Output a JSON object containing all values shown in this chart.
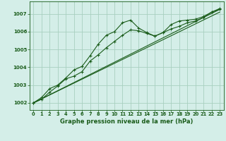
{
  "title": "Graphe pression niveau de la mer (hPa)",
  "background_color": "#d4eee8",
  "grid_color": "#a8cfc0",
  "line_color": "#1a5c1a",
  "text_color": "#1a5c1a",
  "xlim": [
    -0.5,
    23.5
  ],
  "ylim": [
    1001.6,
    1007.7
  ],
  "xticks": [
    0,
    1,
    2,
    3,
    4,
    5,
    6,
    7,
    8,
    9,
    10,
    11,
    12,
    13,
    14,
    15,
    16,
    17,
    18,
    19,
    20,
    21,
    22,
    23
  ],
  "yticks": [
    1002,
    1003,
    1004,
    1005,
    1006,
    1007
  ],
  "series1_x": [
    0,
    1,
    2,
    3,
    4,
    5,
    6,
    7,
    8,
    9,
    10,
    11,
    12,
    13,
    14,
    15,
    16,
    17,
    18,
    19,
    20,
    21,
    22,
    23
  ],
  "series1_y": [
    1002.0,
    1002.2,
    1002.6,
    1002.95,
    1003.35,
    1003.5,
    1003.75,
    1004.35,
    1004.7,
    1005.1,
    1005.45,
    1005.8,
    1006.1,
    1006.05,
    1005.9,
    1005.75,
    1005.95,
    1006.15,
    1006.3,
    1006.5,
    1006.6,
    1006.8,
    1007.1,
    1007.25
  ],
  "series2_x": [
    0,
    1,
    2,
    3,
    4,
    5,
    6,
    7,
    8,
    9,
    10,
    11,
    12,
    13,
    14,
    15,
    16,
    17,
    18,
    19,
    20,
    21,
    22,
    23
  ],
  "series2_y": [
    1002.0,
    1002.3,
    1002.8,
    1003.0,
    1003.4,
    1003.85,
    1004.05,
    1004.65,
    1005.3,
    1005.8,
    1006.0,
    1006.5,
    1006.65,
    1006.2,
    1005.95,
    1005.75,
    1005.95,
    1006.4,
    1006.6,
    1006.65,
    1006.7,
    1006.85,
    1007.1,
    1007.3
  ],
  "series3_x": [
    0,
    23
  ],
  "series3_y": [
    1002.0,
    1007.25
  ],
  "series4_x": [
    0,
    23
  ],
  "series4_y": [
    1002.0,
    1007.1
  ]
}
